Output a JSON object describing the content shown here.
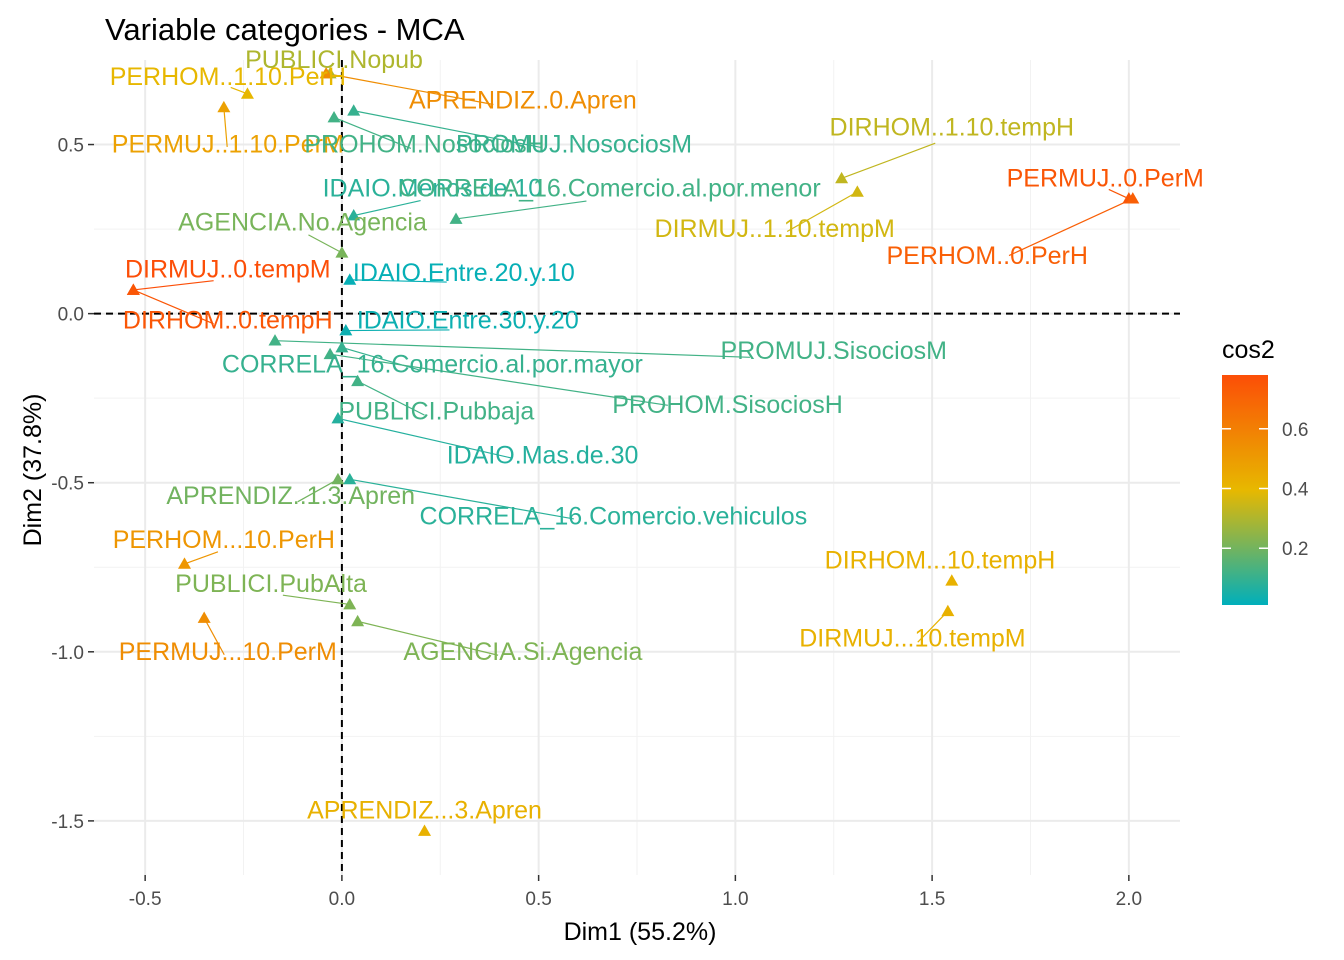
{
  "chart_data": {
    "type": "scatter",
    "title": "Variable categories - MCA",
    "xlabel": "Dim1 (55.2%)",
    "ylabel": "Dim2 (37.8%)",
    "xlim": [
      -0.63,
      2.13
    ],
    "ylim": [
      -1.66,
      0.75
    ],
    "x_ticks": [
      -0.5,
      0.0,
      0.5,
      1.0,
      1.5,
      2.0
    ],
    "x_tick_labels": [
      "-0.5",
      "0.0",
      "0.5",
      "1.0",
      "1.5",
      "2.0"
    ],
    "y_ticks": [
      -1.5,
      -1.0,
      -0.5,
      0.0,
      0.5
    ],
    "y_tick_labels": [
      "-1.5",
      "-1.0",
      "-0.5",
      "0.0",
      "0.5"
    ],
    "reference_lines": {
      "x": 0,
      "y": 0,
      "style": "dashed"
    },
    "grid": true,
    "legend": {
      "title": "cos2",
      "position": "right",
      "ticks": [
        0.2,
        0.4,
        0.6
      ],
      "tick_labels": [
        "0.2",
        "0.4",
        "0.6"
      ],
      "range": [
        0.01,
        0.78
      ],
      "colors": [
        "#00AFBB",
        "#E7B800",
        "#FC4E07"
      ]
    },
    "points": [
      {
        "label": "PUBLICI.Nopub",
        "x": -0.03,
        "y": 0.71,
        "cos2": 0.3,
        "lx": -0.02,
        "ly": 0.75
      },
      {
        "label": "PERHOM..1.10.PerH",
        "x": -0.24,
        "y": 0.65,
        "cos2": 0.4,
        "lx": -0.29,
        "ly": 0.7
      },
      {
        "label": "APRENDIZ..0.Apren",
        "x": -0.04,
        "y": 0.71,
        "cos2": 0.55,
        "lx": 0.46,
        "ly": 0.63
      },
      {
        "label": "PERMUJ..1.10.PerM",
        "x": -0.3,
        "y": 0.61,
        "cos2": 0.48,
        "lx": -0.29,
        "ly": 0.5
      },
      {
        "label": "PROHOM.NosociosH",
        "x": -0.02,
        "y": 0.58,
        "cos2": 0.12,
        "lx": 0.21,
        "ly": 0.5
      },
      {
        "label": "PROMUJ.NosociosM",
        "x": 0.03,
        "y": 0.6,
        "cos2": 0.1,
        "lx": 0.59,
        "ly": 0.5
      },
      {
        "label": "DIRHOM..1.10.tempH",
        "x": 1.27,
        "y": 0.4,
        "cos2": 0.33,
        "lx": 1.55,
        "ly": 0.55
      },
      {
        "label": "PERMUJ..0.PerM",
        "x": 2.0,
        "y": 0.34,
        "cos2": 0.75,
        "lx": 1.94,
        "ly": 0.4
      },
      {
        "label": "IDAIO.Menos.de.10",
        "x": 0.03,
        "y": 0.29,
        "cos2": 0.08,
        "lx": 0.23,
        "ly": 0.37
      },
      {
        "label": "CORRELA_16.Comercio.al.por.menor",
        "x": 0.29,
        "y": 0.28,
        "cos2": 0.12,
        "lx": 0.68,
        "ly": 0.37
      },
      {
        "label": "DIRMUJ..1.10.tempM",
        "x": 1.31,
        "y": 0.36,
        "cos2": 0.36,
        "lx": 1.1,
        "ly": 0.25
      },
      {
        "label": "AGENCIA.No.Agencia",
        "x": 0.0,
        "y": 0.18,
        "cos2": 0.21,
        "lx": -0.1,
        "ly": 0.27
      },
      {
        "label": "PERHOM..0.PerH",
        "x": 2.01,
        "y": 0.34,
        "cos2": 0.72,
        "lx": 1.64,
        "ly": 0.17
      },
      {
        "label": "DIRMUJ..0.tempM",
        "x": -0.53,
        "y": 0.07,
        "cos2": 0.78,
        "lx": -0.29,
        "ly": 0.13
      },
      {
        "label": "IDAIO.Entre.20.y.10",
        "x": 0.02,
        "y": 0.1,
        "cos2": 0.02,
        "lx": 0.31,
        "ly": 0.12
      },
      {
        "label": "DIRHOM..0.tempH",
        "x": -0.53,
        "y": 0.07,
        "cos2": 0.75,
        "lx": -0.29,
        "ly": -0.02
      },
      {
        "label": "IDAIO.Entre.30.y.20",
        "x": 0.01,
        "y": -0.05,
        "cos2": 0.03,
        "lx": 0.32,
        "ly": -0.02
      },
      {
        "label": "PROMUJ.SisociosM",
        "x": -0.17,
        "y": -0.08,
        "cos2": 0.12,
        "lx": 1.25,
        "ly": -0.11
      },
      {
        "label": "CORRELA_16.Comercio.al.por.mayor",
        "x": 0.0,
        "y": -0.1,
        "cos2": 0.1,
        "lx": 0.23,
        "ly": -0.15
      },
      {
        "label": "PUBLICI.Pubbaja",
        "x": 0.04,
        "y": -0.2,
        "cos2": 0.12,
        "lx": 0.24,
        "ly": -0.29
      },
      {
        "label": "PROHOM.SisociosH",
        "x": -0.03,
        "y": -0.12,
        "cos2": 0.12,
        "lx": 0.98,
        "ly": -0.27
      },
      {
        "label": "IDAIO.Mas.de.30",
        "x": -0.01,
        "y": -0.31,
        "cos2": 0.07,
        "lx": 0.51,
        "ly": -0.42
      },
      {
        "label": "APRENDIZ..1.3.Apren",
        "x": -0.01,
        "y": -0.49,
        "cos2": 0.2,
        "lx": -0.13,
        "ly": -0.54
      },
      {
        "label": "CORRELA_16.Comercio.vehiculos",
        "x": 0.02,
        "y": -0.49,
        "cos2": 0.08,
        "lx": 0.69,
        "ly": -0.6
      },
      {
        "label": "PERHOM...10.PerH",
        "x": -0.4,
        "y": -0.74,
        "cos2": 0.52,
        "lx": -0.3,
        "ly": -0.67
      },
      {
        "label": "DIRHOM...10.tempH",
        "x": 1.55,
        "y": -0.79,
        "cos2": 0.42,
        "lx": 1.52,
        "ly": -0.73
      },
      {
        "label": "PUBLICI.PubAlta",
        "x": 0.02,
        "y": -0.86,
        "cos2": 0.22,
        "lx": -0.18,
        "ly": -0.8
      },
      {
        "label": "DIRMUJ...10.tempM",
        "x": 1.54,
        "y": -0.88,
        "cos2": 0.42,
        "lx": 1.45,
        "ly": -0.96
      },
      {
        "label": "PERMUJ...10.PerM",
        "x": -0.35,
        "y": -0.9,
        "cos2": 0.55,
        "lx": -0.29,
        "ly": -1.0
      },
      {
        "label": "AGENCIA.Si.Agencia",
        "x": 0.04,
        "y": -0.91,
        "cos2": 0.22,
        "lx": 0.46,
        "ly": -1.0
      },
      {
        "label": "APRENDIZ...3.Apren",
        "x": 0.21,
        "y": -1.53,
        "cos2": 0.42,
        "lx": 0.21,
        "ly": -1.47
      }
    ]
  }
}
